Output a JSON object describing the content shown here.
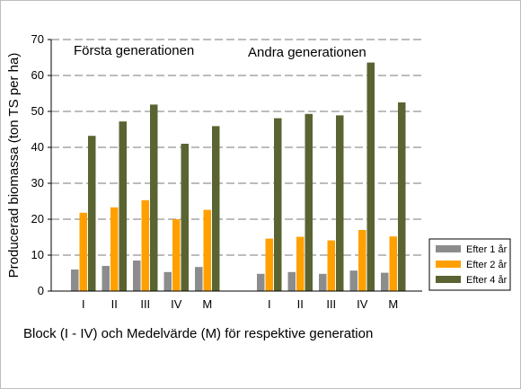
{
  "chart_data": {
    "type": "bar",
    "title": "",
    "ylabel": "Producerad biomassa (ton TS per ha)",
    "xlabel": "Block (I - IV) och Medelvärde (M) för respektive generation",
    "ylim": [
      0,
      70
    ],
    "yticks": [
      "0",
      "10",
      "20",
      "30",
      "40",
      "50",
      "60",
      "70"
    ],
    "grid": "horizontal dashed",
    "legend_position": "right",
    "groups": [
      {
        "label": "Första generationen",
        "categories": [
          "I",
          "II",
          "III",
          "IV",
          "M"
        ],
        "series": [
          {
            "name": "Efter 1 år",
            "values": [
              6.0,
              7.0,
              8.5,
              5.3,
              6.7
            ]
          },
          {
            "name": "Efter 2 år",
            "values": [
              21.8,
              23.3,
              25.3,
              20.0,
              22.6
            ]
          },
          {
            "name": "Efter 4 år",
            "values": [
              43.2,
              47.2,
              51.9,
              41.0,
              45.9
            ]
          }
        ]
      },
      {
        "label": "Andra generationen",
        "categories": [
          "I",
          "II",
          "III",
          "IV",
          "M"
        ],
        "series": [
          {
            "name": "Efter 1 år",
            "values": [
              4.8,
              5.3,
              4.8,
              5.7,
              5.1
            ]
          },
          {
            "name": "Efter 2 år",
            "values": [
              14.6,
              15.1,
              14.1,
              17.0,
              15.2
            ]
          },
          {
            "name": "Efter 4 år",
            "values": [
              48.1,
              49.3,
              48.9,
              63.6,
              52.5
            ]
          }
        ]
      }
    ],
    "legend": [
      {
        "name": "Efter 1 år",
        "color": "#8c8c8c"
      },
      {
        "name": "Efter 2 år",
        "color": "#ffa000"
      },
      {
        "name": "Efter 4 år",
        "color": "#5a6432"
      }
    ]
  }
}
